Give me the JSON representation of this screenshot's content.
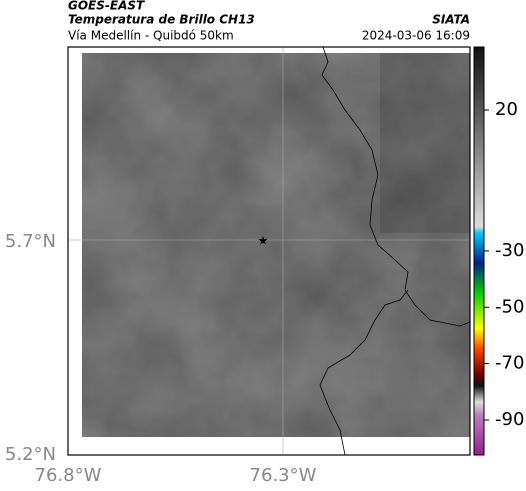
{
  "header": {
    "title": "GOES-EAST",
    "subtitle": "Temperatura de Brillo CH13",
    "route": "Vía Medellín - Quibdó 50km",
    "agency": "SIATA",
    "timestamp": "2024-03-06 16:09"
  },
  "map": {
    "lat_labels": [
      "5.7°N",
      "5.2°N"
    ],
    "lon_labels": [
      "76.8°W",
      "76.3°W"
    ]
  },
  "colorbar": {
    "ticks": [
      20,
      -30,
      -50,
      -70,
      -90
    ]
  }
}
